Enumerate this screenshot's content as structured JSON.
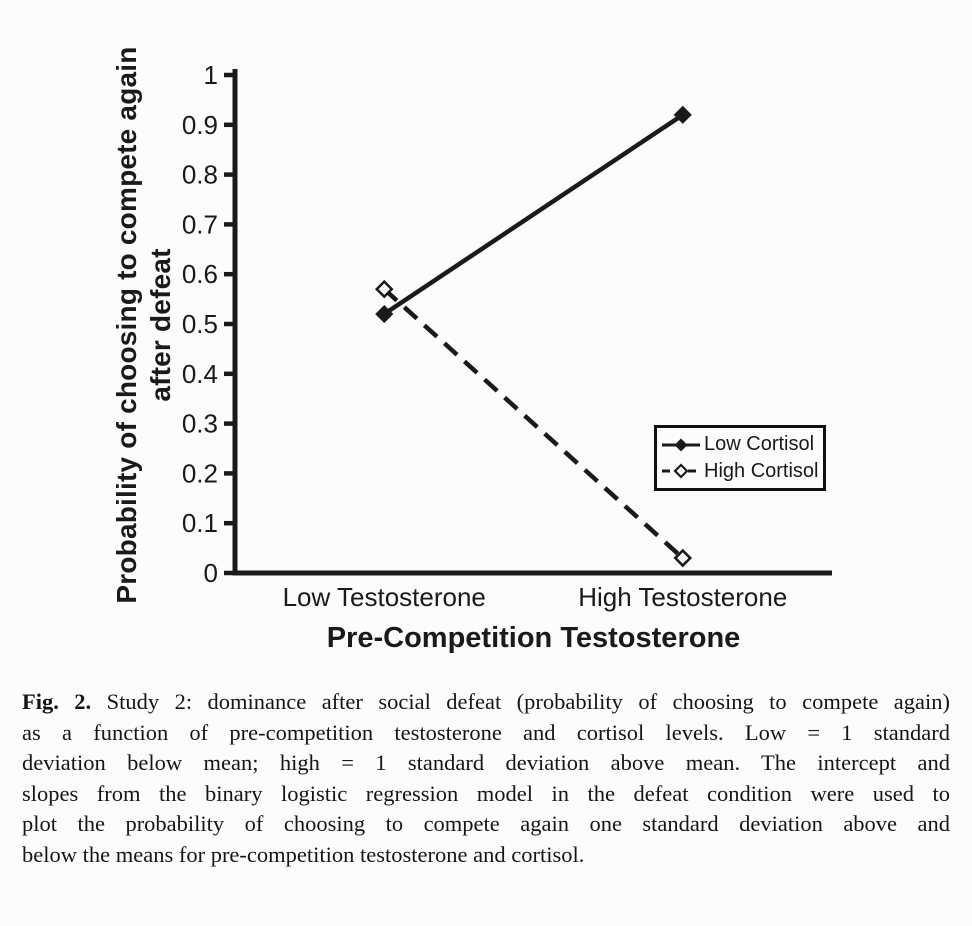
{
  "chart_data": {
    "type": "line",
    "categories": [
      "Low Testosterone",
      "High Testosterone"
    ],
    "series": [
      {
        "name": "Low Cortisol",
        "values": [
          0.52,
          0.92
        ],
        "line_style": "solid",
        "marker": "filled-diamond"
      },
      {
        "name": "High Cortisol",
        "values": [
          0.57,
          0.03
        ],
        "line_style": "dashed",
        "marker": "open-diamond"
      }
    ],
    "xlabel": "Pre-Competition Testosterone",
    "ylabel": "Probability of choosing to compete again after defeat",
    "ylabel_lines": [
      "Probability of choosing to compete again",
      "after defeat"
    ],
    "ylim": [
      0,
      1
    ],
    "ytick_step": 0.1,
    "yticks": [
      "0",
      "0.1",
      "0.2",
      "0.3",
      "0.4",
      "0.5",
      "0.6",
      "0.7",
      "0.8",
      "0.9",
      "1"
    ],
    "grid": false,
    "legend_position": "middle-right",
    "line_color": "#1a1a1a",
    "background": "#fcfcfc"
  },
  "caption": {
    "label": "Fig. 2.",
    "lines": [
      "Study 2: dominance after social defeat (probability of choosing to compete again)",
      "as a function of pre-competition testosterone and cortisol levels. Low = 1 standard",
      "deviation below mean; high = 1 standard deviation above mean. The intercept and",
      "slopes from the binary logistic regression model in the defeat condition were used to",
      "plot the probability of choosing to compete again one standard deviation above and",
      "below the means for pre-competition testosterone and cortisol."
    ]
  }
}
